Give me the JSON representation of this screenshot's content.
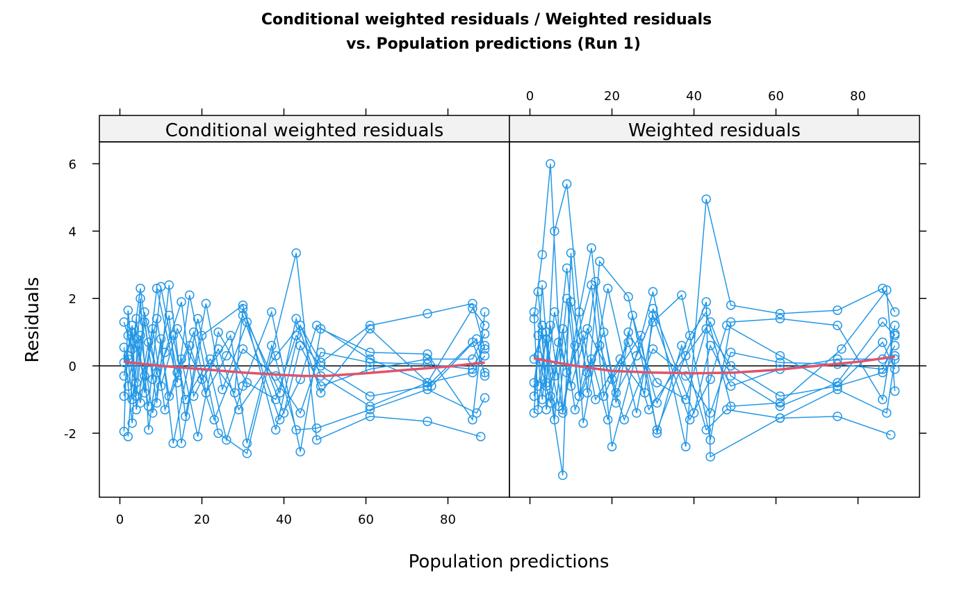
{
  "chart_data": {
    "type": "line",
    "title": [
      "Conditional weighted residuals / Weighted residuals",
      "vs. Population predictions (Run 1)"
    ],
    "xlabel": "Population predictions",
    "ylabel": "Residuals",
    "xlim": [
      -5,
      95
    ],
    "ylim": [
      -3.9,
      6.65
    ],
    "x_ticks": [
      0,
      20,
      40,
      60,
      80
    ],
    "y_ticks": [
      -2,
      0,
      2,
      4,
      6
    ],
    "grid": false,
    "reference_line_y": 0,
    "colors": {
      "points": "#2297E6",
      "smooth": "#DF536B",
      "strip": "#F2F2F2"
    },
    "panels": [
      {
        "name": "Conditional weighted residuals",
        "series": [
          {
            "x": [
              1,
              3,
              5,
              8,
              12,
              15,
              20,
              30,
              38,
              44,
              49,
              61,
              75,
              86,
              89
            ],
            "y": [
              1.3,
              0.5,
              2.3,
              -0.4,
              1.5,
              -2.3,
              0.9,
              1.8,
              -1.9,
              1.2,
              0.1,
              1.2,
              1.55,
              1.85,
              0.5
            ]
          },
          {
            "x": [
              2,
              4,
              6,
              9,
              14,
              17,
              24,
              31,
              43,
              48,
              61,
              75,
              88
            ],
            "y": [
              -2.1,
              1.4,
              -0.8,
              2.3,
              -0.5,
              2.1,
              -2.0,
              -2.6,
              3.35,
              -2.2,
              -1.5,
              -1.65,
              -2.1
            ]
          },
          {
            "x": [
              1,
              3,
              5,
              7,
              10,
              13,
              19,
              26,
              30,
              37,
              44,
              49,
              61,
              75,
              86,
              89
            ],
            "y": [
              0.55,
              -1.7,
              2.0,
              -1.9,
              0.8,
              -2.3,
              1.4,
              -2.2,
              -0.6,
              1.6,
              -2.55,
              1.1,
              0.4,
              0.35,
              -1.6,
              1.6
            ]
          },
          {
            "x": [
              1,
              2,
              4,
              6,
              9,
              12,
              16,
              21,
              25,
              31,
              39,
              43,
              49,
              61,
              76,
              87,
              89
            ],
            "y": [
              -1.95,
              1.65,
              -0.9,
              1.3,
              -1.1,
              2.4,
              -1.5,
              1.85,
              -0.7,
              1.3,
              -0.8,
              1.4,
              -0.8,
              1.1,
              -0.6,
              0.8,
              -0.3
            ]
          },
          {
            "x": [
              2,
              3,
              5,
              8,
              11,
              15,
              18,
              24,
              29,
              38,
              44,
              49,
              61,
              75,
              86,
              89
            ],
            "y": [
              0.2,
              -1.0,
              0.9,
              -1.4,
              0.4,
              1.9,
              -0.9,
              0.5,
              -1.3,
              0.3,
              1.2,
              -0.3,
              -1.2,
              -0.5,
              1.7,
              1.2
            ]
          },
          {
            "x": [
              1,
              3,
              4,
              7,
              10,
              14,
              20,
              27,
              31,
              37,
              43,
              48,
              61,
              75,
              87,
              89
            ],
            "y": [
              -0.3,
              1.2,
              -1.3,
              0.7,
              -0.6,
              1.1,
              -0.4,
              0.9,
              -2.3,
              0.6,
              -1.9,
              -1.85,
              -1.3,
              -0.7,
              -1.4,
              -0.95
            ]
          },
          {
            "x": [
              2,
              4,
              6,
              9,
              13,
              16,
              22,
              28,
              30,
              40,
              44,
              49,
              61,
              75,
              86,
              89
            ],
            "y": [
              0.9,
              -0.5,
              1.6,
              -0.2,
              0.9,
              -1.0,
              0.2,
              -0.8,
              1.7,
              -1.4,
              0.6,
              -0.6,
              -0.1,
              0.2,
              0.2,
              0.95
            ]
          },
          {
            "x": [
              1,
              2,
              5,
              8,
              11,
              17,
              23,
              30,
              38,
              44,
              49,
              61,
              75,
              86,
              89
            ],
            "y": [
              -0.9,
              0.3,
              -1.1,
              1.1,
              -1.3,
              0.6,
              -1.6,
              0.5,
              -0.3,
              -1.4,
              0.4,
              0.1,
              0.05,
              -0.1,
              0.6
            ]
          },
          {
            "x": [
              1,
              3,
              6,
              9,
              12,
              15,
              19,
              24,
              31,
              38,
              43,
              49,
              61,
              75,
              86,
              89
            ],
            "y": [
              0.1,
              1.0,
              -0.3,
              1.4,
              -0.9,
              0.2,
              -2.1,
              1.0,
              -0.5,
              -1.0,
              0.9,
              0.0,
              -0.9,
              -0.6,
              0.7,
              -0.2
            ]
          },
          {
            "x": [
              2,
              4,
              7,
              10,
              14,
              18,
              21,
              26,
              30,
              39,
              44,
              48,
              61,
              75,
              86,
              89
            ],
            "y": [
              -0.6,
              0.8,
              -1.2,
              2.35,
              -0.2,
              1.0,
              -0.8,
              0.3,
              1.5,
              -1.6,
              -0.4,
              1.2,
              0.2,
              -0.5,
              -0.2,
              0.3
            ]
          }
        ],
        "smooth": {
          "x": [
            1,
            10,
            20,
            30,
            40,
            45,
            50,
            60,
            70,
            80,
            89
          ],
          "y": [
            0.12,
            0.0,
            -0.1,
            -0.2,
            -0.27,
            -0.3,
            -0.3,
            -0.22,
            -0.12,
            -0.02,
            0.1
          ]
        }
      },
      {
        "name": "Weighted residuals",
        "series": [
          {
            "x": [
              1,
              3,
              5,
              8,
              12,
              15,
              20,
              30,
              38,
              43,
              49,
              61,
              75,
              86,
              89
            ],
            "y": [
              1.4,
              3.3,
              6.0,
              -1.3,
              1.6,
              3.5,
              -2.4,
              2.2,
              -2.4,
              4.95,
              1.8,
              1.55,
              1.65,
              2.3,
              1.6
            ]
          },
          {
            "x": [
              2,
              4,
              6,
              9,
              14,
              17,
              24,
              31,
              43,
              44,
              61,
              75,
              88
            ],
            "y": [
              2.2,
              -0.6,
              4.0,
              5.4,
              -0.8,
              3.1,
              2.05,
              -1.9,
              1.9,
              -2.7,
              -1.55,
              -1.5,
              -2.05
            ]
          },
          {
            "x": [
              1,
              3,
              5,
              8,
              10,
              13,
              19,
              26,
              30,
              37,
              44,
              49,
              61,
              75,
              86,
              89
            ],
            "y": [
              -1.4,
              2.4,
              -0.9,
              -3.25,
              3.35,
              -1.7,
              2.3,
              -1.4,
              1.3,
              2.1,
              -2.2,
              1.3,
              1.4,
              1.2,
              -1.0,
              1.2
            ]
          },
          {
            "x": [
              1,
              2,
              4,
              6,
              9,
              12,
              16,
              21,
              25,
              31,
              39,
              43,
              49,
              61,
              76,
              87,
              89
            ],
            "y": [
              1.6,
              -1.3,
              1.0,
              -1.6,
              2.0,
              -0.9,
              2.5,
              -1.1,
              1.5,
              -1.1,
              0.9,
              1.6,
              -1.2,
              -1.1,
              0.5,
              2.25,
              -0.75
            ]
          },
          {
            "x": [
              2,
              3,
              5,
              8,
              11,
              15,
              18,
              24,
              29,
              38,
              44,
              49,
              61,
              75,
              86,
              89
            ],
            "y": [
              0.3,
              -1.0,
              1.2,
              -1.4,
              0.6,
              2.4,
              -0.9,
              0.7,
              -1.3,
              0.3,
              1.3,
              -0.3,
              -1.2,
              -0.5,
              1.3,
              0.9
            ]
          },
          {
            "x": [
              1,
              3,
              4,
              7,
              10,
              14,
              20,
              27,
              31,
              37,
              43,
              48,
              61,
              75,
              87,
              89
            ],
            "y": [
              -0.5,
              1.2,
              -1.3,
              0.7,
              -0.6,
              1.1,
              -0.4,
              0.9,
              -2.0,
              0.6,
              -1.9,
              -1.3,
              -1.55,
              -0.7,
              -1.4,
              0.2
            ]
          },
          {
            "x": [
              2,
              4,
              6,
              9,
              13,
              16,
              22,
              28,
              30,
              40,
              44,
              49,
              61,
              75,
              86,
              89
            ],
            "y": [
              0.9,
              -0.5,
              1.6,
              -0.2,
              0.9,
              -1.0,
              0.2,
              -0.8,
              1.7,
              -1.4,
              0.6,
              -0.6,
              -0.1,
              0.2,
              0.2,
              0.95
            ]
          },
          {
            "x": [
              1,
              2,
              5,
              8,
              11,
              17,
              23,
              30,
              38,
              44,
              49,
              61,
              75,
              86,
              89
            ],
            "y": [
              -0.9,
              0.3,
              -1.1,
              1.1,
              -1.3,
              0.6,
              -1.6,
              0.5,
              -0.3,
              -1.4,
              0.4,
              0.1,
              0.05,
              -0.1,
              0.6
            ]
          },
          {
            "x": [
              1,
              3,
              6,
              9,
              12,
              15,
              19,
              24,
              31,
              38,
              43,
              49,
              61,
              75,
              86,
              89
            ],
            "y": [
              0.2,
              1.0,
              -0.3,
              2.9,
              -0.9,
              0.2,
              -1.6,
              1.0,
              -0.5,
              -1.0,
              1.1,
              0.0,
              -0.9,
              -0.6,
              0.7,
              -0.1
            ]
          },
          {
            "x": [
              2,
              4,
              7,
              10,
              14,
              18,
              21,
              26,
              30,
              39,
              44,
              48,
              61,
              75,
              86,
              89
            ],
            "y": [
              -0.6,
              0.8,
              -1.2,
              1.9,
              -0.2,
              1.0,
              -0.8,
              0.3,
              1.5,
              -1.6,
              -0.4,
              1.2,
              0.3,
              -0.6,
              -0.2,
              0.3
            ]
          }
        ],
        "smooth": {
          "x": [
            1,
            10,
            20,
            30,
            40,
            50,
            60,
            70,
            80,
            89
          ],
          "y": [
            0.22,
            0.02,
            -0.15,
            -0.2,
            -0.22,
            -0.2,
            -0.12,
            0.0,
            0.12,
            0.27
          ]
        }
      }
    ]
  }
}
